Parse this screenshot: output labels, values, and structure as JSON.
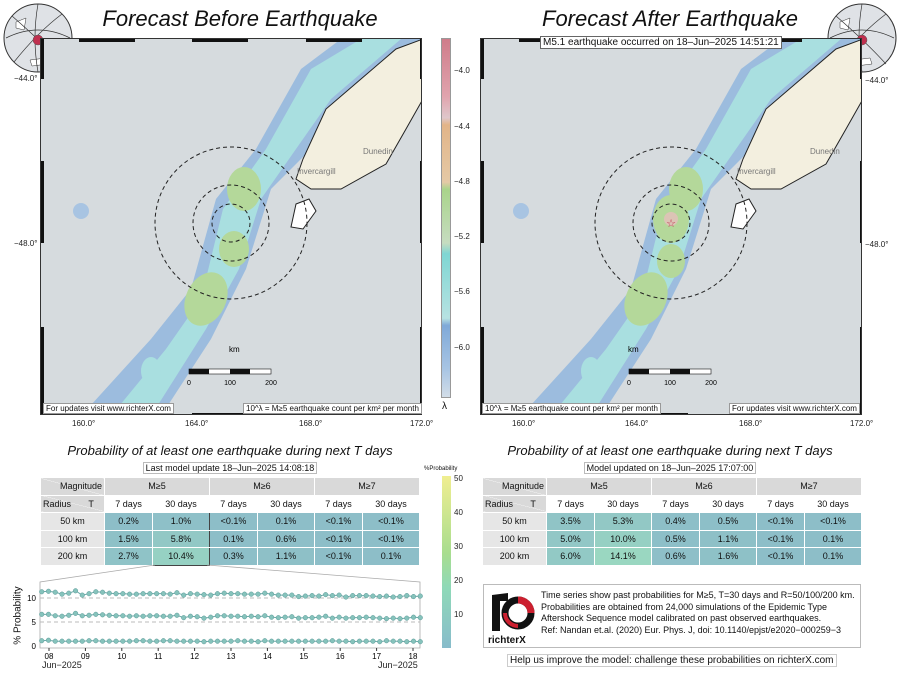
{
  "left_panel": {
    "title": "Forecast Before Earthquake",
    "footer_left": "For updates visit www.richterX.com",
    "legend_note": "10^λ = M≥5 earthquake count per km² per month",
    "lon_ticks": [
      "160.0°",
      "164.0°",
      "168.0°",
      "172.0°"
    ],
    "lat_ticks": [
      "−44.0°",
      "−48.0°"
    ],
    "cities": [
      "Dunedin",
      "Invercargill"
    ],
    "scale_label": "km",
    "scale_ticks": [
      "0",
      "100",
      "200"
    ],
    "table_title": "Probability of at least one earthquake during next T days",
    "update": "Last model update 18–Jun–2025 14:08:18",
    "rows": [
      {
        "radius": "50 km",
        "values": [
          "0.2%",
          "1.0%",
          "<0.1%",
          "0.1%",
          "<0.1%",
          "<0.1%"
        ],
        "p": [
          0.2,
          1.0,
          0.05,
          0.1,
          0.05,
          0.05
        ]
      },
      {
        "radius": "100 km",
        "values": [
          "1.5%",
          "5.8%",
          "0.1%",
          "0.6%",
          "<0.1%",
          "<0.1%"
        ],
        "p": [
          1.5,
          5.8,
          0.1,
          0.6,
          0.05,
          0.05
        ]
      },
      {
        "radius": "200 km",
        "values": [
          "2.7%",
          "10.4%",
          "0.3%",
          "1.1%",
          "<0.1%",
          "0.1%"
        ],
        "p": [
          2.7,
          10.4,
          0.3,
          1.1,
          0.05,
          0.1
        ]
      }
    ]
  },
  "right_panel": {
    "title": "Forecast After Earthquake",
    "event": "M5.1 earthquake occurred on 18–Jun–2025 14:51:21",
    "footer_right": "For updates visit www.richterX.com",
    "legend_note": "10^λ = M≥5 earthquake count per km² per month",
    "lon_ticks": [
      "160.0°",
      "164.0°",
      "168.0°",
      "172.0°"
    ],
    "lat_ticks": [
      "−44.0°",
      "−48.0°"
    ],
    "cities": [
      "Dunedin",
      "Invercargill"
    ],
    "scale_label": "km",
    "scale_ticks": [
      "0",
      "100",
      "200"
    ],
    "table_title": "Probability of at least one earthquake during next T days",
    "update": "Model updated on 18–Jun–2025 17:07:00",
    "rows": [
      {
        "radius": "50 km",
        "values": [
          "3.5%",
          "5.3%",
          "0.4%",
          "0.5%",
          "<0.1%",
          "<0.1%"
        ],
        "p": [
          3.5,
          5.3,
          0.4,
          0.5,
          0.05,
          0.05
        ]
      },
      {
        "radius": "100 km",
        "values": [
          "5.0%",
          "10.0%",
          "0.5%",
          "1.1%",
          "<0.1%",
          "0.1%"
        ],
        "p": [
          5.0,
          10.0,
          0.5,
          1.1,
          0.05,
          0.1
        ]
      },
      {
        "radius": "200 km",
        "values": [
          "6.0%",
          "14.1%",
          "0.6%",
          "1.6%",
          "<0.1%",
          "0.1%"
        ],
        "p": [
          6.0,
          14.1,
          0.6,
          1.6,
          0.05,
          0.1
        ]
      }
    ]
  },
  "table_headers": {
    "magnitude": "Magnitude",
    "radius": "Radius",
    "t": "T",
    "mags": [
      "M≥5",
      "M≥6",
      "M≥7"
    ],
    "periods": [
      "7 days",
      "30 days",
      "7 days",
      "30 days",
      "7 days",
      "30 days"
    ]
  },
  "lambda_colorbar": {
    "label": "λ",
    "ticks": [
      "−4.0",
      "−4.4",
      "−4.8",
      "−5.2",
      "−5.6",
      "−6.0"
    ]
  },
  "prob_colorbar": {
    "label": "%Probability",
    "ticks": [
      "50",
      "40",
      "30",
      "20",
      "10"
    ]
  },
  "colors": {
    "land": "#f3efdf",
    "sea": "#d6dbde",
    "cell": "#8dbec8",
    "cell_high": "#9fe2be",
    "epicenter": "#c0304f"
  },
  "info": {
    "logo_text": "richterX",
    "lines": [
      "Time series show past probabilities for M≥5, T=30 days and R=50/100/200 km.",
      "Probabilities are obtained from 24,000 simulations of the Epidemic Type",
      "Aftershock Sequence model calibrated on past observed earthquakes.",
      "Ref: Nandan et.al. (2020) Eur. Phys. J, doi: 10.1140/epjst/e2020−000259−3"
    ],
    "help": "Help us improve the model: challenge these probabilities on richterX.com"
  },
  "chart_data": {
    "type": "line",
    "ylabel": "% Probability",
    "yticks": [
      "0",
      "5",
      "10"
    ],
    "ylim": [
      0,
      13
    ],
    "xtick_labels": [
      "08",
      "09",
      "10",
      "11",
      "12",
      "13",
      "14",
      "15",
      "16",
      "17",
      "18"
    ],
    "x_start_label": "Jun−2025",
    "x_end_label": "Jun−2025",
    "x_range_days": [
      7.8,
      18.2
    ],
    "series": [
      {
        "values": [
          11.3,
          11.4,
          11.2,
          10.8,
          11.0,
          11.5,
          10.6,
          10.9,
          11.3,
          11.2,
          11.0,
          10.9,
          10.9,
          10.8,
          10.8,
          10.9,
          10.9,
          10.9,
          10.9,
          10.8,
          11.1,
          10.6,
          10.9,
          10.8,
          10.7,
          10.6,
          10.9,
          11.0,
          10.9,
          10.9,
          10.8,
          10.8,
          10.8,
          11.0,
          10.8,
          10.6,
          10.6,
          10.6,
          10.3,
          10.4,
          10.5,
          10.4,
          10.7,
          10.5,
          10.6,
          10.2,
          10.5,
          10.5,
          10.5,
          10.4,
          10.3,
          10.4,
          10.2,
          10.3,
          10.5,
          10.3,
          10.4
        ]
      },
      {
        "values": [
          6.6,
          6.6,
          6.3,
          6.2,
          6.4,
          6.8,
          6.3,
          6.4,
          6.6,
          6.5,
          6.4,
          6.3,
          6.3,
          6.2,
          6.3,
          6.2,
          6.3,
          6.3,
          6.2,
          6.2,
          6.4,
          5.9,
          6.2,
          6.1,
          5.8,
          6.0,
          6.3,
          6.3,
          6.2,
          6.2,
          6.1,
          6.2,
          6.1,
          6.3,
          6.0,
          5.9,
          6.0,
          6.1,
          5.8,
          5.9,
          5.9,
          6.0,
          6.2,
          5.8,
          6.0,
          5.8,
          5.9,
          5.9,
          6.0,
          5.9,
          5.8,
          5.7,
          5.8,
          5.7,
          5.8,
          6.0,
          5.9
        ]
      },
      {
        "values": [
          1.1,
          1.2,
          1.0,
          1.0,
          1.0,
          1.0,
          1.0,
          1.1,
          1.1,
          1.0,
          1.0,
          1.0,
          1.0,
          1.0,
          1.1,
          1.1,
          1.0,
          1.0,
          1.1,
          1.1,
          1.0,
          1.0,
          1.0,
          1.0,
          0.9,
          1.0,
          1.0,
          1.0,
          1.0,
          1.1,
          1.0,
          1.0,
          0.9,
          1.1,
          1.0,
          1.0,
          1.0,
          1.0,
          1.0,
          1.0,
          1.0,
          1.0,
          1.0,
          1.1,
          1.0,
          1.0,
          0.9,
          1.0,
          1.0,
          1.0,
          0.9,
          1.1,
          1.0,
          1.0,
          0.9,
          1.0,
          0.9
        ]
      }
    ]
  }
}
